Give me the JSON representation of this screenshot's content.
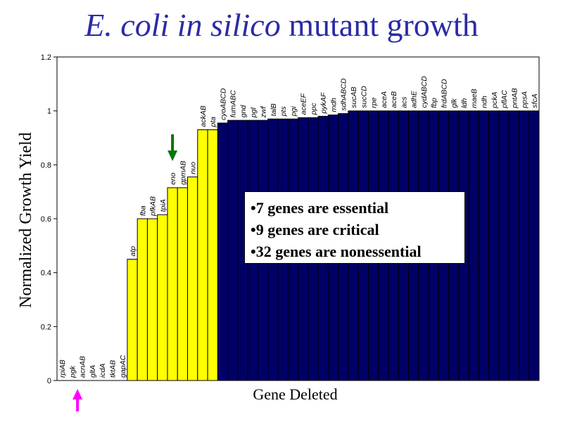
{
  "slide": {
    "title_italic": "E. coli in silico",
    "title_rest": " mutant growth"
  },
  "callout": {
    "lines": [
      "•7 genes are essential",
      "•9 genes are critical",
      "•32 genes are nonessential"
    ]
  },
  "colors": {
    "title": "#2b2ba6",
    "essential_critical_bars": "#ffff00",
    "nonessential_bars": "#000066",
    "green_arrow": "#007700",
    "magenta_arrow": "#ff00ff"
  },
  "annotations": [
    {
      "type": "arrow",
      "direction": "down",
      "color": "#007700",
      "points_to": "eno"
    },
    {
      "type": "arrow",
      "direction": "up",
      "color": "#ff00ff",
      "points_to": "rpiAB"
    }
  ],
  "chart_data": {
    "type": "bar",
    "title": "",
    "xlabel": "Gene Deleted",
    "ylabel": "Normalized Growth Yield",
    "ylim": [
      0,
      1.2
    ],
    "yticks": [
      "0",
      "0.2",
      "0.4",
      "0.6",
      "0.8",
      "1",
      "1.2"
    ],
    "grid": false,
    "legend": "none",
    "categories": [
      "rpiAB",
      "pgk",
      "acnAB",
      "gltA",
      "icdA",
      "tktAB",
      "gapAC",
      "atp",
      "fba",
      "pfkAB",
      "tpiA",
      "eno",
      "gpmAB",
      "nuo",
      "ackAB",
      "pta",
      "cyoABCD",
      "fumABC",
      "gnd",
      "pgl",
      "zwf",
      "talB",
      "pts",
      "pgi",
      "aceEF",
      "ppc",
      "pykAF",
      "mdh",
      "sdhABCD",
      "sucAB",
      "sucCD",
      "rpe",
      "aceA",
      "aceB",
      "acs",
      "adhE",
      "cydABCD",
      "fbp",
      "frdABCD",
      "glk",
      "ldh",
      "maeB",
      "ndh",
      "pckA",
      "pflAC",
      "pntAB",
      "ppsA",
      "sfcA"
    ],
    "values": [
      0,
      0,
      0,
      0,
      0,
      0,
      0,
      0.45,
      0.6,
      0.6,
      0.615,
      0.715,
      0.715,
      0.755,
      0.93,
      0.93,
      0.955,
      0.965,
      0.965,
      0.965,
      0.965,
      0.97,
      0.97,
      0.97,
      0.975,
      0.975,
      0.98,
      0.985,
      0.99,
      1,
      1,
      1,
      1,
      1,
      1,
      1,
      1,
      1,
      1,
      1,
      1,
      1,
      1,
      1,
      1,
      1,
      1,
      1
    ],
    "groups": [
      {
        "color": "#ffff00",
        "first_index": 0,
        "last_index": 15
      },
      {
        "color": "#000066",
        "first_index": 16,
        "last_index": 47
      }
    ]
  }
}
